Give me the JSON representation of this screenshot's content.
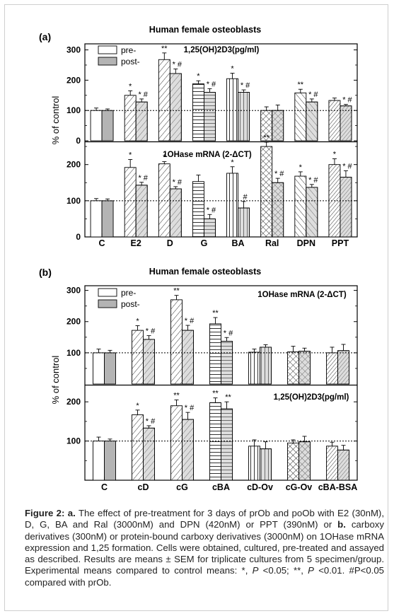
{
  "figure": {
    "panels": [
      {
        "letter": "(a)",
        "title": "Human female osteoblasts",
        "ylabel": "% of control",
        "legend": {
          "pre": "pre-",
          "post": "post-"
        }
      },
      {
        "letter": "(b)",
        "title": "Human female osteoblasts",
        "ylabel": "% of control",
        "legend": {
          "pre": "pre-",
          "post": "post-"
        }
      }
    ],
    "colors": {
      "post_fill": "#b4b4b4",
      "stroke": "#000000",
      "caption_text": "#222222"
    }
  },
  "chart_data": [
    {
      "type": "bar",
      "panel": "(a)",
      "subtitle": "1,25(OH)2D3(pg/ml)",
      "categories": [
        "C",
        "E2",
        "D",
        "G",
        "BA",
        "Ral",
        "DPN",
        "PPT"
      ],
      "ylim": [
        0,
        320
      ],
      "yticks": [
        0,
        100,
        200,
        300
      ],
      "reference_line": 100,
      "patterns": [
        "none",
        "diag-right",
        "diag-right",
        "horizontal",
        "vertical",
        "crosshatch",
        "diag-left",
        "diag-dense"
      ],
      "series": [
        {
          "name": "pre-",
          "values": [
            100,
            150,
            268,
            188,
            205,
            100,
            158,
            133
          ],
          "errors": [
            8,
            15,
            22,
            10,
            18,
            12,
            12,
            8
          ],
          "marks": [
            "",
            "*",
            "**",
            "*",
            "*",
            "",
            "**",
            ""
          ]
        },
        {
          "name": "post-",
          "values": [
            100,
            128,
            222,
            160,
            160,
            100,
            128,
            115
          ],
          "errors": [
            5,
            10,
            15,
            12,
            8,
            18,
            10,
            5
          ],
          "marks": [
            "",
            "* #",
            "* #",
            "* #",
            "* #",
            "",
            "* #",
            "* #"
          ]
        }
      ]
    },
    {
      "type": "bar",
      "panel": "(a)",
      "subtitle": "1OHase mRNA (2-ΔCT)",
      "categories": [
        "C",
        "E2",
        "D",
        "G",
        "BA",
        "Ral",
        "DPN",
        "PPT"
      ],
      "ylim": [
        0,
        260
      ],
      "yticks": [
        0,
        100,
        200
      ],
      "reference_line": 100,
      "patterns": [
        "none",
        "diag-right",
        "diag-right",
        "horizontal",
        "vertical",
        "crosshatch",
        "diag-left",
        "diag-dense"
      ],
      "series": [
        {
          "name": "pre-",
          "values": [
            100,
            192,
            202,
            153,
            176,
            250,
            168,
            200
          ],
          "errors": [
            6,
            22,
            6,
            18,
            18,
            12,
            12,
            16
          ],
          "marks": [
            "",
            "*",
            "*",
            "",
            "*",
            "**",
            "*",
            "*"
          ]
        },
        {
          "name": "post-",
          "values": [
            100,
            143,
            133,
            50,
            80,
            150,
            137,
            165
          ],
          "errors": [
            5,
            8,
            6,
            12,
            18,
            12,
            8,
            18
          ],
          "marks": [
            "",
            "* #",
            "* #",
            "* #",
            "#",
            "* #",
            "* #",
            "* #"
          ]
        }
      ]
    },
    {
      "type": "bar",
      "panel": "(b)",
      "subtitle": "1OHase mRNA (2-ΔCT)",
      "categories": [
        "C",
        "cD",
        "cG",
        "cBA",
        "cD-Ov",
        "cG-Ov",
        "cBA-BSA"
      ],
      "ylim": [
        0,
        320
      ],
      "yticks": [
        0,
        100,
        200,
        300
      ],
      "reference_line": 100,
      "patterns": [
        "none",
        "diag-right",
        "diag-right",
        "horizontal",
        "vertical",
        "crosshatch",
        "diag-dense"
      ],
      "series": [
        {
          "name": "pre-",
          "values": [
            100,
            172,
            270,
            193,
            102,
            103,
            100
          ],
          "errors": [
            12,
            15,
            14,
            20,
            10,
            18,
            18
          ],
          "marks": [
            "",
            "*",
            "**",
            "**",
            "",
            "",
            ""
          ]
        },
        {
          "name": "post-",
          "values": [
            100,
            143,
            172,
            137,
            118,
            105,
            107
          ],
          "errors": [
            8,
            12,
            16,
            12,
            8,
            10,
            20
          ],
          "marks": [
            "",
            "* #",
            "* #",
            "* #",
            "",
            "",
            ""
          ]
        }
      ]
    },
    {
      "type": "bar",
      "panel": "(b)",
      "subtitle": "1,25(OH)2D3(pg/ml)",
      "categories": [
        "C",
        "cD",
        "cG",
        "cBA",
        "cD-Ov",
        "cG-Ov",
        "cBA-BSA"
      ],
      "ylim": [
        0,
        240
      ],
      "yticks": [
        100,
        200
      ],
      "reference_line": 100,
      "patterns": [
        "none",
        "diag-right",
        "diag-right",
        "horizontal",
        "vertical",
        "crosshatch",
        "diag-dense"
      ],
      "series": [
        {
          "name": "pre-",
          "values": [
            100,
            167,
            190,
            198,
            87,
            95,
            87
          ],
          "errors": [
            10,
            12,
            15,
            12,
            16,
            8,
            10
          ],
          "marks": [
            "",
            "*",
            "**",
            "**",
            "",
            "",
            ""
          ]
        },
        {
          "name": "post-",
          "values": [
            100,
            133,
            155,
            182,
            80,
            98,
            77
          ],
          "errors": [
            5,
            6,
            18,
            18,
            18,
            14,
            12
          ],
          "marks": [
            "",
            "* #",
            "* #",
            "**",
            "",
            "",
            ""
          ]
        }
      ]
    }
  ],
  "caption": {
    "label": "Figure 2: ",
    "a_label": "a.",
    "p1": " The effect of pre-treatment for 3 days of prOb and poOb with E2 (30nM), D, G, BA and Ral (3000nM) and DPN (420nM) or PPT (390nM) or ",
    "b_label": "b.",
    "p2": " carboxy derivatives (300nM) or protein-bound carboxy derivatives (3000nM) on 1OHase mRNA expression and 1,25 formation. Cells were obtained, cultured, pre-treated and assayed as described. Results are means ± SEM for triplicate cultures from 5 specimen/group. Experimental means compared to control means: *, ",
    "P1": "P",
    "p3": " <0.05; **, ",
    "P2": "P",
    "p4": " <0.01. #P<0.05 compared with prOb."
  }
}
